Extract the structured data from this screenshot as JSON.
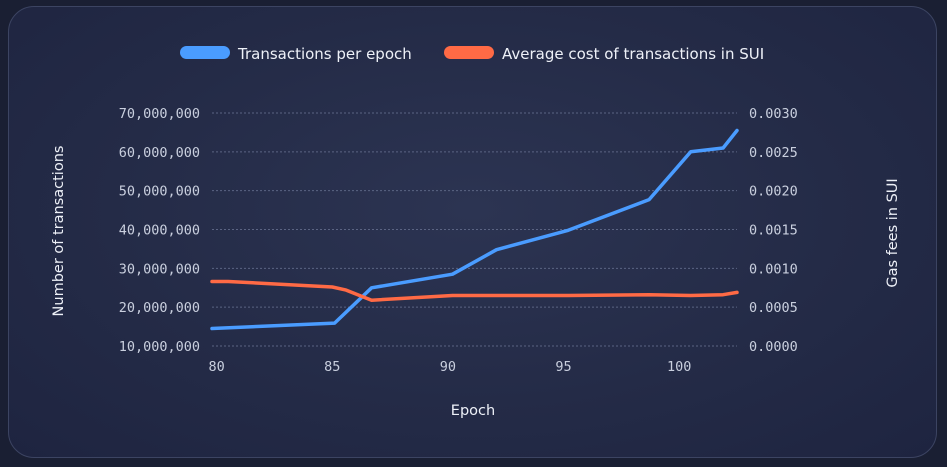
{
  "chart_data": {
    "type": "line",
    "title": "",
    "xlabel": "Epoch",
    "ylabel_left": "Number of transactions",
    "ylabel_right": "Gas fees in SUI",
    "xlim": [
      80,
      102.5
    ],
    "ylim_left": [
      10000000,
      70000000
    ],
    "ylim_right": [
      0,
      0.003
    ],
    "x_ticks": [
      80,
      85,
      90,
      95,
      100
    ],
    "x_tick_labels": [
      "80",
      "85",
      "90",
      "95",
      "100"
    ],
    "y_left_ticks": [
      10000000,
      20000000,
      30000000,
      40000000,
      50000000,
      60000000,
      70000000
    ],
    "y_left_tick_labels": [
      "10,000,000",
      "20,000,000",
      "30,000,000",
      "40,000,000",
      "50,000,000",
      "60,000,000",
      "70,000,000"
    ],
    "y_right_ticks": [
      0,
      0.0005,
      0.001,
      0.0015,
      0.002,
      0.0025,
      0.003
    ],
    "y_right_tick_labels": [
      "0.0000",
      "0.0005",
      "0.0010",
      "0.0015",
      "0.0020",
      "0.0025",
      "0.0030"
    ],
    "grid": "horizontal dotted",
    "legend": "top-center",
    "series": [
      {
        "name": "Transactions per epoch",
        "axis": "left",
        "color": "#4a9cff",
        "x": [
          79.8,
          85.1,
          86.7,
          90.2,
          92.1,
          95.2,
          98.7,
          100.5,
          101.9,
          102.5
        ],
        "y": [
          14500000,
          15900000,
          25000000,
          28500000,
          34800000,
          39800000,
          47700000,
          60000000,
          61000000,
          65500000
        ]
      },
      {
        "name": "Average cost of transactions in SUI",
        "axis": "right",
        "color": "#ff6a45",
        "x": [
          79.8,
          80.5,
          85.0,
          85.6,
          86.7,
          90.2,
          95.2,
          98.7,
          100.5,
          101.9,
          102.5
        ],
        "y": [
          0.00083,
          0.00083,
          0.00076,
          0.00072,
          0.00059,
          0.00065,
          0.00065,
          0.00066,
          0.00065,
          0.00066,
          0.00069
        ]
      }
    ]
  }
}
